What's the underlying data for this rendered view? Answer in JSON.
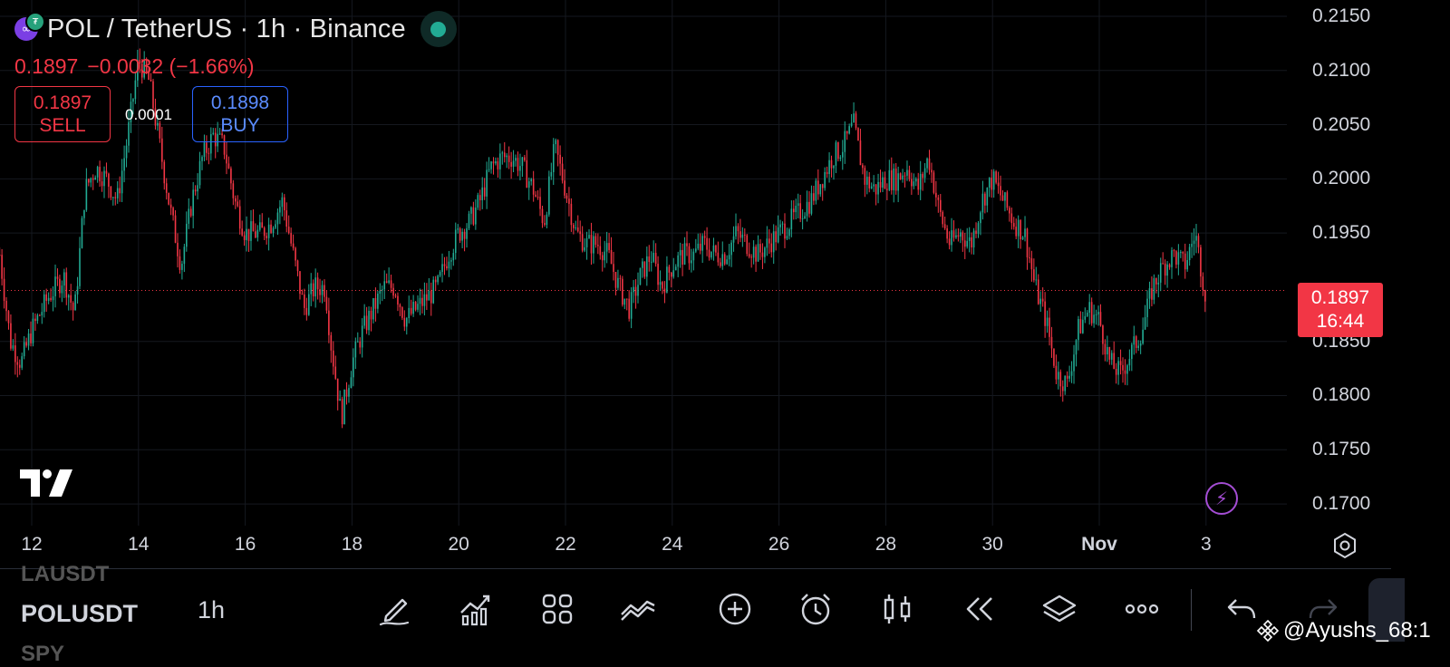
{
  "header": {
    "title": "POL / TetherUS · 1h · Binance",
    "price": "0.1897",
    "change": "−0.0032 (−1.66%)"
  },
  "trade": {
    "sell_price": "0.1897",
    "sell_label": "SELL",
    "spread": "0.0001",
    "buy_price": "0.1898",
    "buy_label": "BUY"
  },
  "last_price_tag": {
    "price": "0.1897",
    "countdown": "16:44"
  },
  "toolbar": {
    "symbol_prev": "LAUSDT",
    "symbol_current": "POLUSDT",
    "symbol_next": "SPY",
    "timeframe": "1h",
    "icons": [
      "pencil-icon",
      "indicators-icon",
      "grid-icon",
      "compare-icon",
      "add-icon",
      "alert-icon",
      "candle-style-icon",
      "replay-icon",
      "layers-icon",
      "more-icon",
      "undo-icon",
      "redo-icon"
    ]
  },
  "watermark": "@Ayushs_68:1",
  "colors": {
    "up": "#22ab94",
    "down": "#f23645",
    "accent": "#2962ff",
    "background": "#000000"
  },
  "chart_data": {
    "type": "candlestick",
    "y_ticks": [
      "0.2150",
      "0.2100",
      "0.2050",
      "0.2000",
      "0.1950",
      "0.1850",
      "0.1800",
      "0.1750",
      "0.1700"
    ],
    "x_ticks": [
      {
        "label": "12",
        "day": 12
      },
      {
        "label": "14",
        "day": 14
      },
      {
        "label": "16",
        "day": 16
      },
      {
        "label": "18",
        "day": 18
      },
      {
        "label": "20",
        "day": 20
      },
      {
        "label": "22",
        "day": 22
      },
      {
        "label": "24",
        "day": 24
      },
      {
        "label": "26",
        "day": 26
      },
      {
        "label": "28",
        "day": 28
      },
      {
        "label": "30",
        "day": 30
      },
      {
        "label": "Nov",
        "day": 32,
        "month": true
      },
      {
        "label": "3",
        "day": 34
      }
    ],
    "ylim": [
      0.168,
      0.2165
    ],
    "last_price": 0.1897,
    "close_path": [
      [
        11.4,
        0.193
      ],
      [
        11.6,
        0.185
      ],
      [
        11.8,
        0.183
      ],
      [
        12.0,
        0.186
      ],
      [
        12.3,
        0.189
      ],
      [
        12.6,
        0.191
      ],
      [
        12.8,
        0.1875
      ],
      [
        13.0,
        0.199
      ],
      [
        13.2,
        0.201
      ],
      [
        13.4,
        0.2
      ],
      [
        13.6,
        0.198
      ],
      [
        13.8,
        0.204
      ],
      [
        14.0,
        0.211
      ],
      [
        14.2,
        0.209
      ],
      [
        14.4,
        0.203
      ],
      [
        14.6,
        0.197
      ],
      [
        14.8,
        0.192
      ],
      [
        15.0,
        0.198
      ],
      [
        15.2,
        0.202
      ],
      [
        15.4,
        0.204
      ],
      [
        15.6,
        0.203
      ],
      [
        15.8,
        0.198
      ],
      [
        16.0,
        0.195
      ],
      [
        16.3,
        0.195
      ],
      [
        16.5,
        0.196
      ],
      [
        16.7,
        0.198
      ],
      [
        16.9,
        0.193
      ],
      [
        17.1,
        0.188
      ],
      [
        17.3,
        0.19
      ],
      [
        17.5,
        0.19
      ],
      [
        17.6,
        0.185
      ],
      [
        17.8,
        0.178
      ],
      [
        18.0,
        0.183
      ],
      [
        18.2,
        0.186
      ],
      [
        18.4,
        0.188
      ],
      [
        18.6,
        0.19
      ],
      [
        18.8,
        0.19
      ],
      [
        19.0,
        0.187
      ],
      [
        19.2,
        0.188
      ],
      [
        19.4,
        0.189
      ],
      [
        19.6,
        0.19
      ],
      [
        19.8,
        0.193
      ],
      [
        20.0,
        0.195
      ],
      [
        20.2,
        0.196
      ],
      [
        20.4,
        0.198
      ],
      [
        20.6,
        0.201
      ],
      [
        20.8,
        0.202
      ],
      [
        21.0,
        0.202
      ],
      [
        21.2,
        0.201
      ],
      [
        21.4,
        0.199
      ],
      [
        21.6,
        0.196
      ],
      [
        21.8,
        0.203
      ],
      [
        22.0,
        0.199
      ],
      [
        22.2,
        0.195
      ],
      [
        22.4,
        0.194
      ],
      [
        22.6,
        0.194
      ],
      [
        22.8,
        0.193
      ],
      [
        23.0,
        0.19
      ],
      [
        23.2,
        0.188
      ],
      [
        23.4,
        0.191
      ],
      [
        23.6,
        0.193
      ],
      [
        23.8,
        0.19
      ],
      [
        24.0,
        0.192
      ],
      [
        24.2,
        0.193
      ],
      [
        24.4,
        0.193
      ],
      [
        24.6,
        0.194
      ],
      [
        24.8,
        0.193
      ],
      [
        25.0,
        0.193
      ],
      [
        25.2,
        0.195
      ],
      [
        25.4,
        0.194
      ],
      [
        25.6,
        0.193
      ],
      [
        25.8,
        0.194
      ],
      [
        26.0,
        0.195
      ],
      [
        26.2,
        0.196
      ],
      [
        26.4,
        0.197
      ],
      [
        26.6,
        0.198
      ],
      [
        26.8,
        0.2
      ],
      [
        27.0,
        0.202
      ],
      [
        27.2,
        0.203
      ],
      [
        27.4,
        0.205
      ],
      [
        27.6,
        0.2
      ],
      [
        27.8,
        0.199
      ],
      [
        28.0,
        0.2
      ],
      [
        28.2,
        0.2
      ],
      [
        28.4,
        0.201
      ],
      [
        28.6,
        0.199
      ],
      [
        28.8,
        0.202
      ],
      [
        29.0,
        0.197
      ],
      [
        29.2,
        0.194
      ],
      [
        29.4,
        0.195
      ],
      [
        29.6,
        0.194
      ],
      [
        29.8,
        0.198
      ],
      [
        30.0,
        0.2
      ],
      [
        30.2,
        0.198
      ],
      [
        30.4,
        0.196
      ],
      [
        30.6,
        0.195
      ],
      [
        30.8,
        0.19
      ],
      [
        31.0,
        0.187
      ],
      [
        31.2,
        0.182
      ],
      [
        31.4,
        0.181
      ],
      [
        31.6,
        0.186
      ],
      [
        31.8,
        0.188
      ],
      [
        32.0,
        0.187
      ],
      [
        32.2,
        0.183
      ],
      [
        32.4,
        0.182
      ],
      [
        32.6,
        0.184
      ],
      [
        32.8,
        0.186
      ],
      [
        33.0,
        0.19
      ],
      [
        33.2,
        0.192
      ],
      [
        33.4,
        0.193
      ],
      [
        33.6,
        0.192
      ],
      [
        33.8,
        0.195
      ],
      [
        34.0,
        0.189
      ]
    ]
  }
}
